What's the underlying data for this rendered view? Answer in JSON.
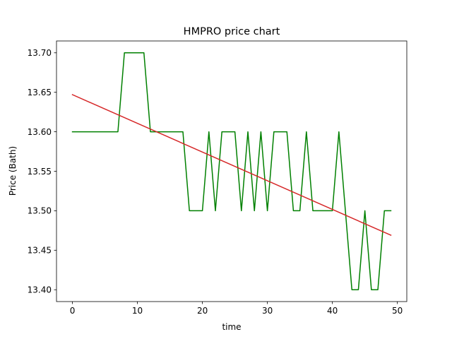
{
  "chart_data": {
    "type": "line",
    "title": "HMPRO price chart",
    "xlabel": "time",
    "ylabel": "Price (Bath)",
    "xlim": [
      -2.45,
      51.45
    ],
    "ylim": [
      13.385,
      13.715
    ],
    "xticks": [
      0,
      10,
      20,
      30,
      40,
      50
    ],
    "yticks": [
      13.4,
      13.45,
      13.5,
      13.55,
      13.6,
      13.65,
      13.7
    ],
    "ytick_labels": [
      "13.40",
      "13.45",
      "13.50",
      "13.55",
      "13.60",
      "13.65",
      "13.70"
    ],
    "xtick_labels": [
      "0",
      "10",
      "20",
      "30",
      "40",
      "50"
    ],
    "grid": false,
    "series": [
      {
        "color": "#008000",
        "x": [
          0,
          1,
          2,
          3,
          4,
          5,
          6,
          7,
          8,
          9,
          10,
          11,
          12,
          13,
          14,
          15,
          16,
          17,
          18,
          19,
          20,
          21,
          22,
          23,
          24,
          25,
          26,
          27,
          28,
          29,
          30,
          31,
          32,
          33,
          34,
          35,
          36,
          37,
          38,
          39,
          40,
          41,
          42,
          43,
          44,
          45,
          46,
          47,
          48,
          49
        ],
        "y": [
          13.6,
          13.6,
          13.6,
          13.6,
          13.6,
          13.6,
          13.6,
          13.6,
          13.7,
          13.7,
          13.7,
          13.7,
          13.6,
          13.6,
          13.6,
          13.6,
          13.6,
          13.6,
          13.5,
          13.5,
          13.5,
          13.6,
          13.5,
          13.6,
          13.6,
          13.6,
          13.5,
          13.6,
          13.5,
          13.6,
          13.5,
          13.6,
          13.6,
          13.6,
          13.5,
          13.5,
          13.6,
          13.5,
          13.5,
          13.5,
          13.5,
          13.6,
          13.5,
          13.4,
          13.4,
          13.5,
          13.4,
          13.4,
          13.5,
          13.5
        ]
      },
      {
        "color": "#d62728",
        "x": [
          0,
          49
        ],
        "y": [
          13.647,
          13.469
        ]
      }
    ]
  }
}
